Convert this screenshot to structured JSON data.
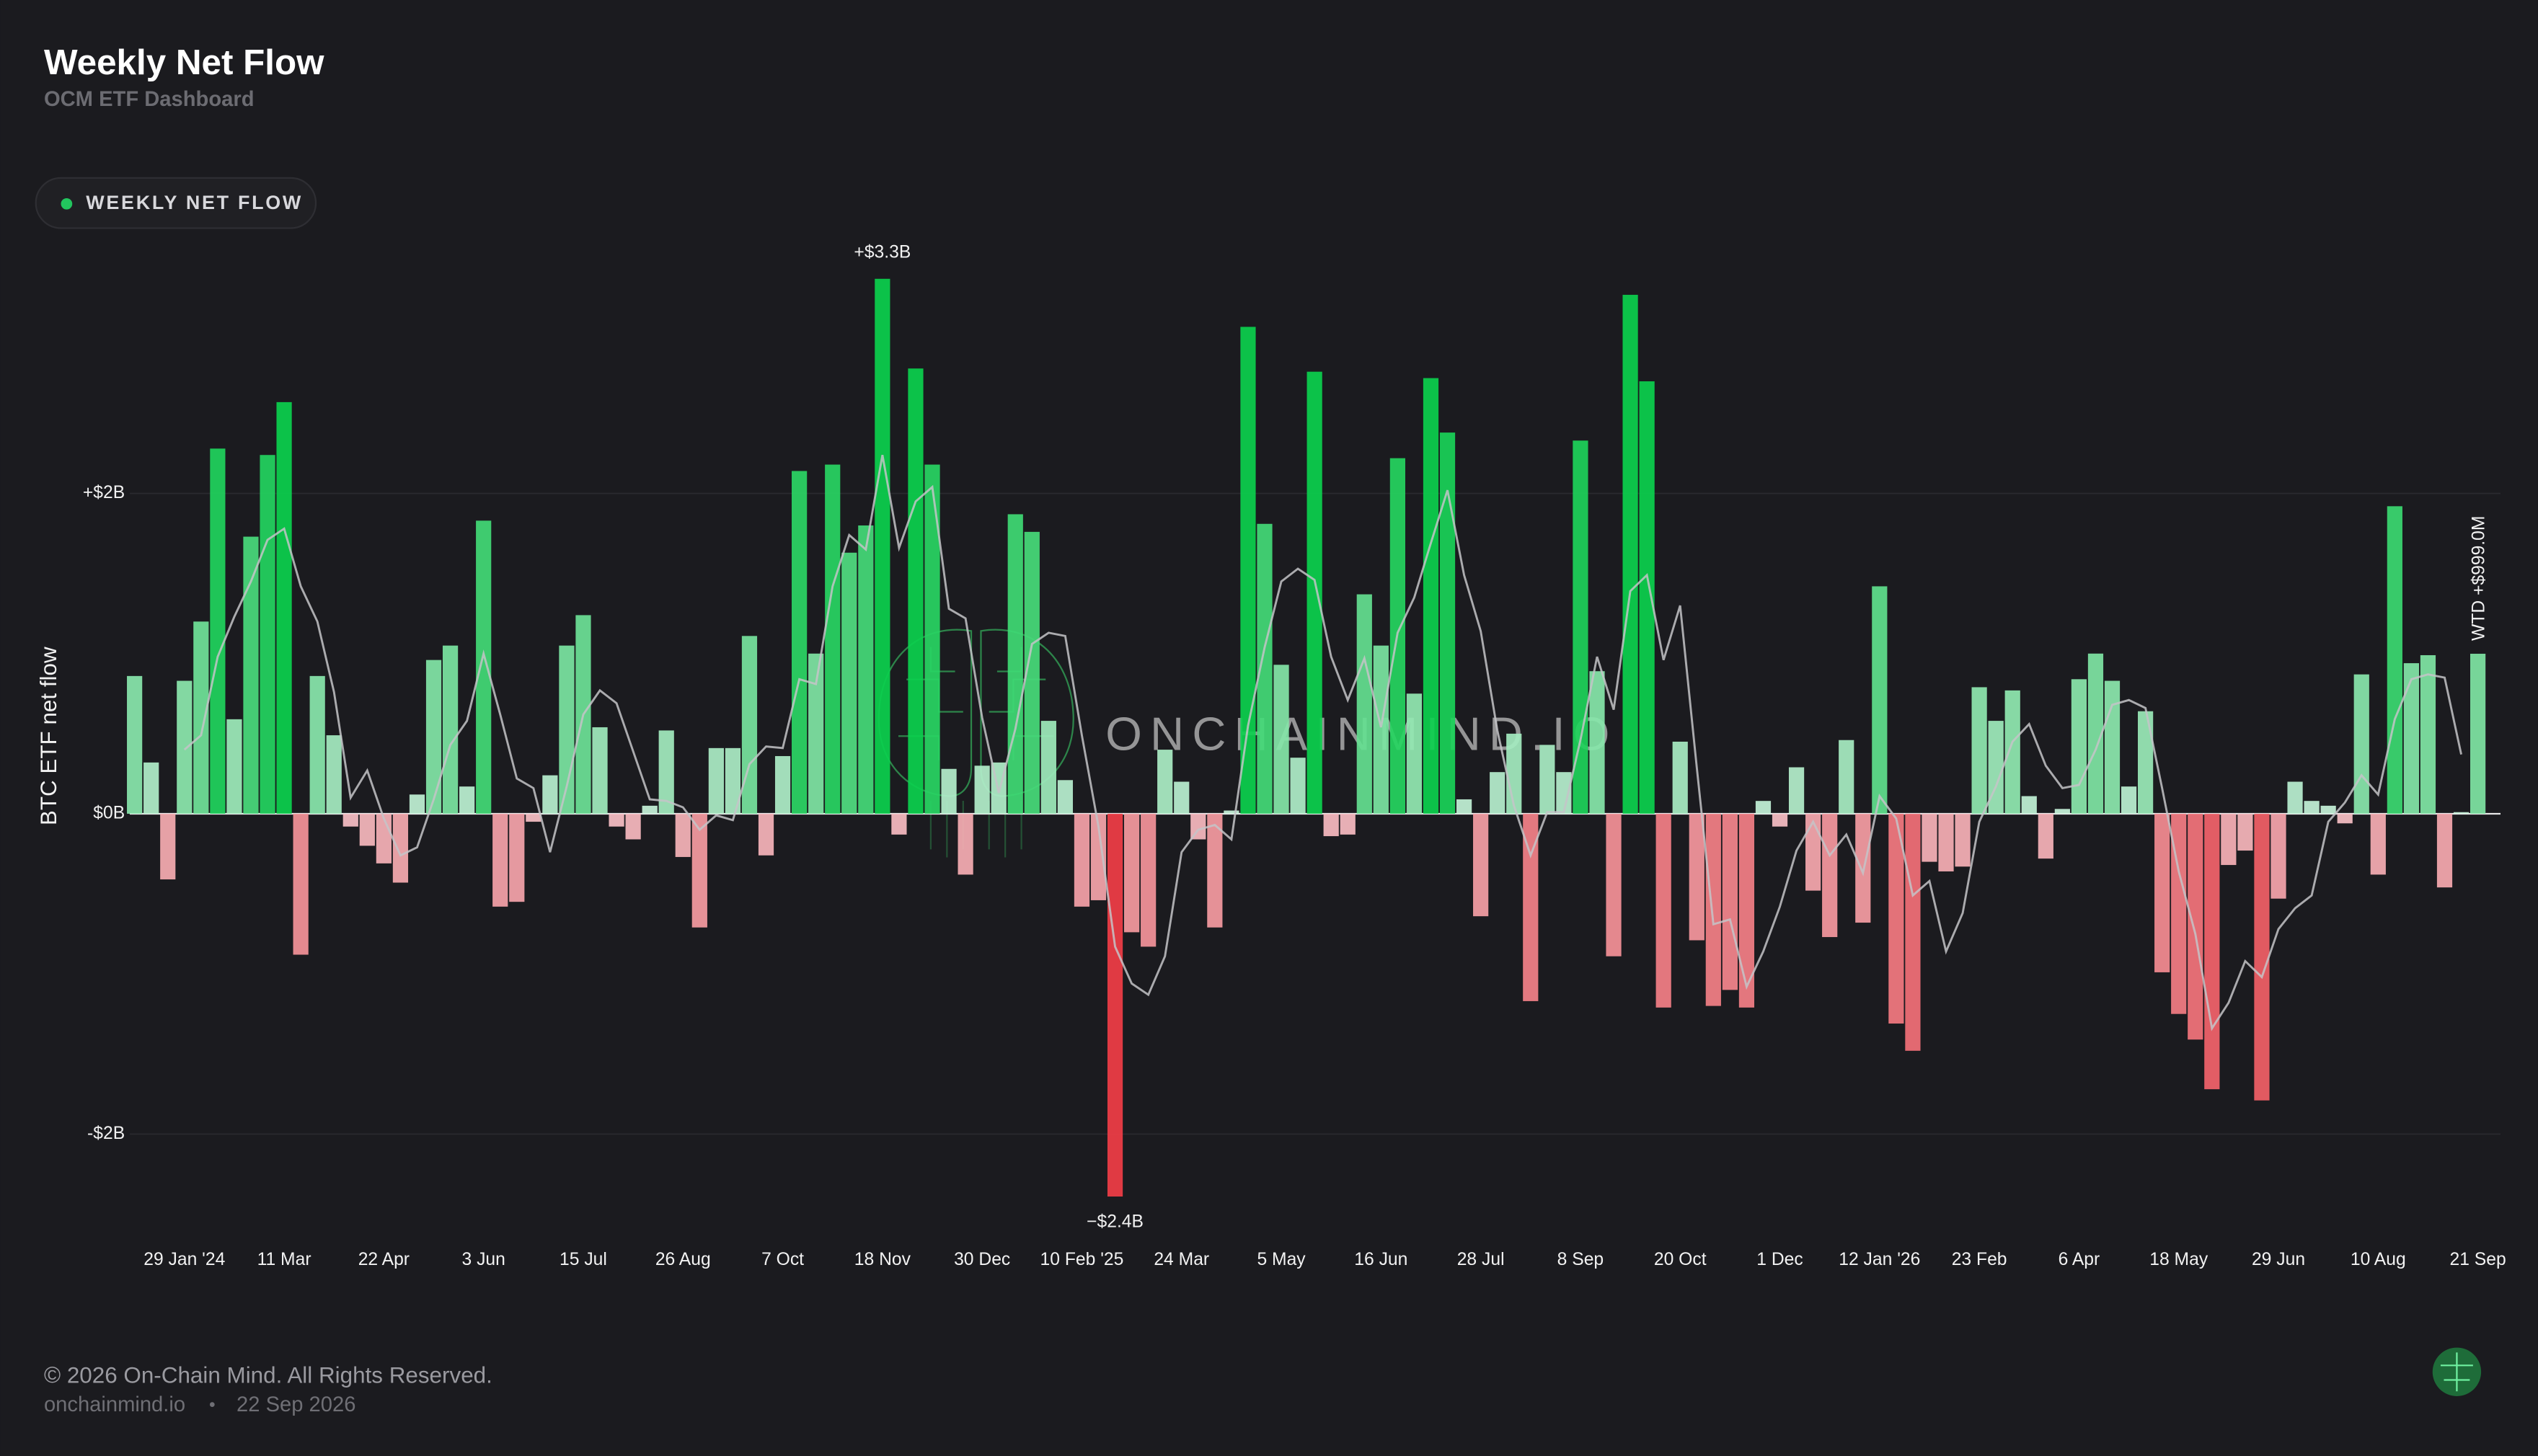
{
  "header": {
    "title": "Weekly Net Flow",
    "subtitle": "OCM ETF Dashboard"
  },
  "chart_data": {
    "type": "bar",
    "y_label": "BTC ETF net flow",
    "watermark": "ONCHAINMIND.IO",
    "categories": [
      null,
      null,
      null,
      "29 Jan '24",
      null,
      null,
      null,
      null,
      null,
      "11 Mar",
      null,
      null,
      null,
      null,
      null,
      "22 Apr",
      null,
      null,
      null,
      null,
      null,
      "3 Jun",
      null,
      null,
      null,
      null,
      null,
      "15 Jul",
      null,
      null,
      null,
      null,
      null,
      "26 Aug",
      null,
      null,
      null,
      null,
      null,
      "7 Oct",
      null,
      null,
      null,
      null,
      null,
      "18 Nov",
      null,
      null,
      null,
      null,
      null,
      "30 Dec",
      null,
      null,
      null,
      null,
      null,
      "10 Feb '25",
      null,
      null,
      null,
      null,
      null,
      "24 Mar",
      null,
      null,
      null,
      null,
      null,
      "5 May",
      null,
      null,
      null,
      null,
      null,
      "16 Jun",
      null,
      null,
      null,
      null,
      null,
      "28 Jul",
      null,
      null,
      null,
      null,
      null,
      "8 Sep",
      null,
      null,
      null,
      null,
      null,
      "20 Oct",
      null,
      null,
      null,
      null,
      null,
      "1 Dec",
      null,
      null,
      null,
      null,
      null,
      "12 Jan '26",
      null,
      null,
      null,
      null,
      null,
      "23 Feb",
      null,
      null,
      null,
      null,
      null,
      "6 Apr",
      null,
      null,
      null,
      null,
      null,
      "18 May",
      null,
      null,
      null,
      null,
      null,
      "29 Jun",
      null,
      null,
      null,
      null,
      null,
      "10 Aug",
      null,
      null,
      null,
      null,
      null,
      "21 Sep"
    ],
    "series": [
      {
        "name": "WEEKLY NET FLOW",
        "color": "#22c55e",
        "positive_colors": [
          "#c9f3dc",
          "#0bd04d"
        ],
        "negative_colors": [
          "#f8c3c9",
          "#f0333c"
        ],
        "values": [
          0.86,
          0.32,
          -0.41,
          0.83,
          1.2,
          2.28,
          0.59,
          1.73,
          2.24,
          2.57,
          -0.88,
          0.86,
          0.49,
          -0.08,
          -0.2,
          -0.31,
          -0.43,
          0.12,
          0.96,
          1.05,
          0.17,
          1.83,
          -0.58,
          -0.55,
          -0.05,
          0.24,
          1.05,
          1.24,
          0.54,
          -0.08,
          -0.16,
          0.05,
          0.52,
          -0.27,
          -0.71,
          0.41,
          0.41,
          1.11,
          -0.26,
          0.36,
          2.14,
          1.0,
          2.18,
          1.63,
          1.8,
          3.34,
          -0.13,
          2.78,
          2.18,
          0.28,
          -0.38,
          0.3,
          0.32,
          1.87,
          1.76,
          0.58,
          0.21,
          -0.58,
          -0.54,
          -2.39,
          -0.74,
          -0.83,
          0.4,
          0.2,
          -0.16,
          -0.71,
          0.02,
          3.04,
          1.81,
          0.93,
          0.35,
          2.76,
          -0.14,
          -0.13,
          1.37,
          1.05,
          2.22,
          0.75,
          2.72,
          2.38,
          0.09,
          -0.64,
          0.26,
          0.5,
          -1.17,
          0.43,
          0.26,
          2.33,
          0.89,
          -0.89,
          3.24,
          2.7,
          -1.21,
          0.45,
          -0.79,
          -1.2,
          -1.1,
          -1.21,
          0.08,
          -0.08,
          0.29,
          -0.48,
          -0.77,
          0.46,
          -0.68,
          1.42,
          -1.31,
          -1.48,
          -0.3,
          -0.36,
          -0.33,
          0.79,
          0.58,
          0.77,
          0.11,
          -0.28,
          0.03,
          0.84,
          1.0,
          0.83,
          0.17,
          0.64,
          -0.99,
          -1.25,
          -1.41,
          -1.72,
          -0.32,
          -0.23,
          -1.79,
          -0.53,
          0.2,
          0.08,
          0.05,
          -0.06,
          0.87,
          -0.38,
          1.92,
          0.94,
          0.99,
          -0.46,
          0.01,
          0.999
        ],
        "value_labels": [
          null,
          null,
          null,
          null,
          null,
          null,
          null,
          null,
          null,
          null,
          null,
          null,
          null,
          null,
          null,
          null,
          null,
          null,
          null,
          null,
          null,
          null,
          null,
          null,
          null,
          null,
          null,
          null,
          null,
          null,
          null,
          null,
          null,
          null,
          null,
          null,
          null,
          null,
          null,
          null,
          null,
          null,
          null,
          null,
          null,
          "+$3.3B",
          null,
          null,
          null,
          null,
          null,
          null,
          null,
          null,
          null,
          null,
          null,
          null,
          null,
          "−$2.4B",
          null,
          null,
          null,
          null,
          null,
          null,
          null,
          null,
          null,
          null,
          null,
          null,
          null,
          null,
          null,
          null,
          null,
          null,
          null,
          null,
          null,
          null,
          null,
          null,
          null,
          null,
          null,
          null,
          null,
          null,
          null,
          null,
          null,
          null,
          null,
          null,
          null,
          null,
          null,
          null,
          null,
          null,
          null,
          null,
          null,
          null,
          null,
          null,
          null,
          null,
          null,
          null,
          null,
          null,
          null,
          null,
          null,
          null,
          null,
          null,
          null,
          null,
          null,
          null,
          null,
          null,
          null,
          null,
          null,
          null,
          null,
          null,
          null,
          null,
          null,
          null,
          null,
          null,
          null,
          null,
          null,
          "WTD +$999.0M"
        ]
      },
      {
        "type": "line",
        "color": "#c4c4c8",
        "values": [
          null,
          null,
          null,
          0.4,
          0.49,
          0.98,
          1.23,
          1.45,
          1.71,
          1.78,
          1.42,
          1.2,
          0.76,
          0.1,
          0.27,
          -0.03,
          -0.26,
          -0.21,
          0.09,
          0.43,
          0.58,
          1.0,
          0.62,
          0.22,
          0.16,
          -0.24,
          0.17,
          0.62,
          0.77,
          0.69,
          0.39,
          0.09,
          0.08,
          0.04,
          -0.1,
          -0.01,
          -0.04,
          0.31,
          0.42,
          0.41,
          0.84,
          0.81,
          1.42,
          1.74,
          1.65,
          2.24,
          1.66,
          1.95,
          2.04,
          1.28,
          1.22,
          0.6,
          0.13,
          0.53,
          1.06,
          1.13,
          1.11,
          0.49,
          -0.08,
          -0.83,
          -1.06,
          -1.13,
          -0.89,
          -0.24,
          -0.1,
          -0.07,
          -0.16,
          0.55,
          1.04,
          1.45,
          1.53,
          1.46,
          0.98,
          0.71,
          0.97,
          0.54,
          1.13,
          1.35,
          1.69,
          2.02,
          1.49,
          1.14,
          0.52,
          0.05,
          -0.26,
          0.01,
          0.01,
          0.46,
          0.98,
          0.65,
          1.39,
          1.49,
          0.96,
          1.3,
          0.29,
          -0.69,
          -0.66,
          -1.08,
          -0.86,
          -0.58,
          -0.23,
          -0.05,
          -0.26,
          -0.13,
          -0.37,
          0.11,
          -0.03,
          -0.51,
          -0.42,
          -0.86,
          -0.62,
          -0.05,
          0.17,
          0.45,
          0.56,
          0.3,
          0.16,
          0.18,
          0.4,
          0.68,
          0.71,
          0.66,
          0.16,
          -0.36,
          -0.75,
          -1.34,
          -1.18,
          -0.92,
          -1.02,
          -0.72,
          -0.59,
          -0.51,
          -0.05,
          0.07,
          0.24,
          0.12,
          0.59,
          0.84,
          0.87,
          0.85,
          0.37,
          null
        ]
      }
    ],
    "ylim": [
      -2.6,
      3.5
    ],
    "yticks": [
      {
        "value": -2,
        "label": "-$2B"
      },
      {
        "value": 0,
        "label": "$0B"
      },
      {
        "value": 2,
        "label": "+$2B"
      }
    ],
    "grid": true
  },
  "footer": {
    "copyright": "© 2026 On-Chain Mind. All Rights Reserved.",
    "site": "onchainmind.io",
    "separator": "•",
    "date": "22 Sep 2026"
  }
}
